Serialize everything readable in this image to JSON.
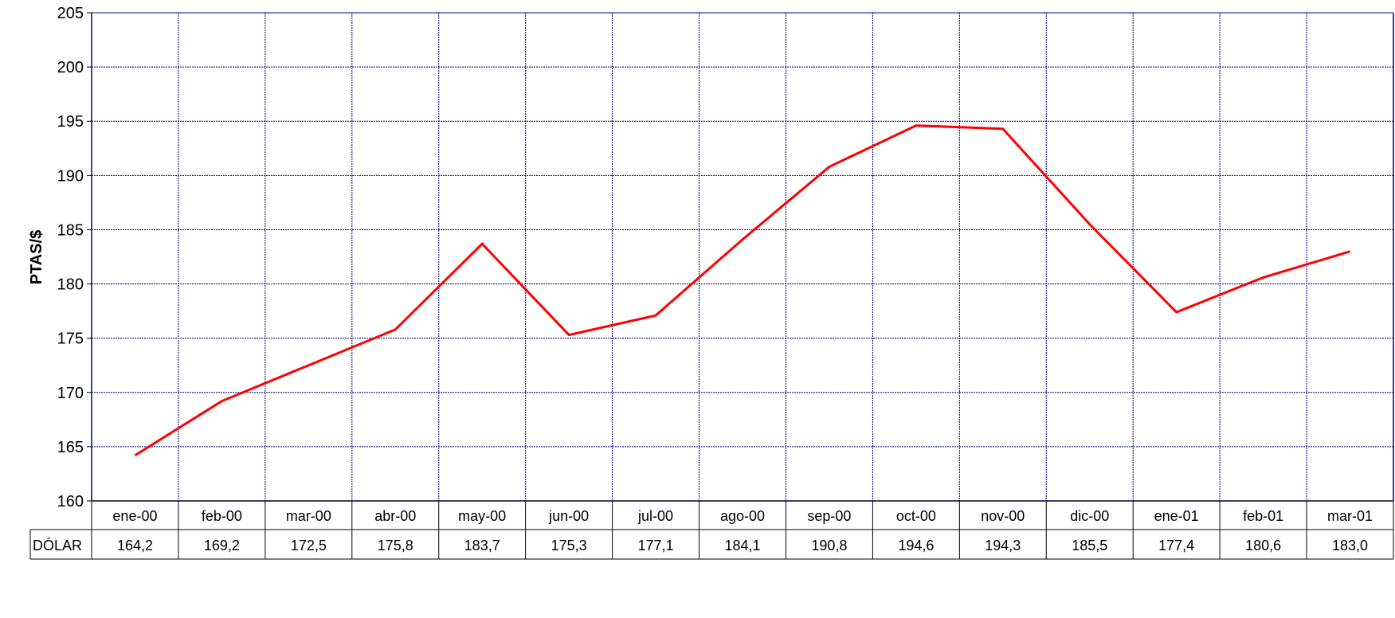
{
  "chart_data": {
    "type": "line",
    "title": "",
    "xlabel": "",
    "ylabel": "PTAS/$",
    "ylim": [
      160,
      205
    ],
    "yticks": [
      160,
      165,
      170,
      175,
      180,
      185,
      190,
      195,
      200,
      205
    ],
    "categories": [
      "ene-00",
      "feb-00",
      "mar-00",
      "abr-00",
      "may-00",
      "jun-00",
      "jul-00",
      "ago-00",
      "sep-00",
      "oct-00",
      "nov-00",
      "dic-00",
      "ene-01",
      "feb-01",
      "mar-01"
    ],
    "series": [
      {
        "name": "DÓLAR",
        "values": [
          164.2,
          169.2,
          172.5,
          175.8,
          183.7,
          175.3,
          177.1,
          184.1,
          190.8,
          194.6,
          194.3,
          185.5,
          177.4,
          180.6,
          183.0
        ],
        "labels": [
          "164,2",
          "169,2",
          "172,5",
          "175,8",
          "183,7",
          "175,3",
          "177,1",
          "184,1",
          "190,8",
          "194,6",
          "194,3",
          "185,5",
          "177,4",
          "180,6",
          "183,0"
        ],
        "color": "#ff0000"
      }
    ],
    "grid": true,
    "grid_color": "#000080",
    "legend": "none",
    "data_table": true
  }
}
